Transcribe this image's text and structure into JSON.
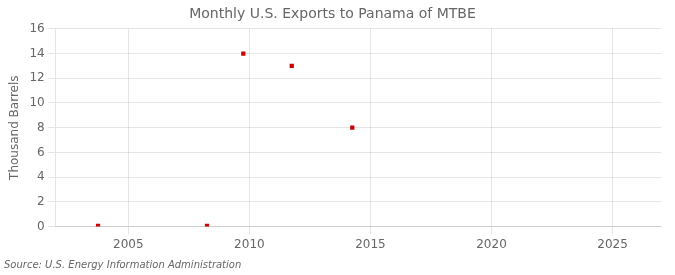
{
  "chart_data": {
    "type": "scatter",
    "title": "Monthly U.S. Exports to Panama of MTBE",
    "ylabel": "Thousand Barrels",
    "annotations": [
      "Source: U.S. Energy Information Administration"
    ],
    "x": [
      2003.75,
      2008.25,
      2009.75,
      2011.75,
      2014.25
    ],
    "values": [
      0.05,
      0.05,
      14.0,
      13.0,
      8.0
    ],
    "color": "#cc0000",
    "marker": "square",
    "xlim": [
      2002,
      2027
    ],
    "xticks": [
      2005,
      2010,
      2015,
      2020,
      2025
    ],
    "ylim": [
      0,
      16
    ],
    "yticks": [
      0,
      2,
      4,
      6,
      8,
      10,
      12,
      14,
      16
    ],
    "grid": true
  }
}
